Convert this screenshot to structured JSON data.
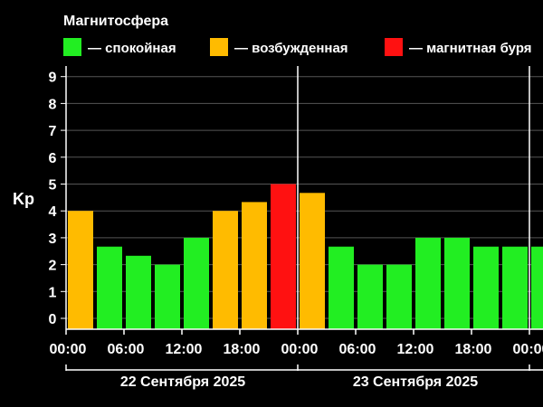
{
  "chart_data": {
    "type": "bar",
    "legend": {
      "title": "Магнитосфера",
      "placement": "top-left",
      "items": [
        {
          "label": "— спокойная",
          "color": "#22ee22"
        },
        {
          "label": "— возбужденная",
          "color": "#ffbb00"
        },
        {
          "label": "— магнитная буря",
          "color": "#ff1111"
        }
      ]
    },
    "ylabel": "Kp",
    "ylim": [
      0,
      9.5
    ],
    "yticks": [
      "0",
      "1",
      "2",
      "3",
      "4",
      "5",
      "6",
      "7",
      "8",
      "9"
    ],
    "xticks": [
      "00:00",
      "06:00",
      "12:00",
      "18:00",
      "00:00",
      "06:00",
      "12:00",
      "18:00",
      "00:00"
    ],
    "days": [
      "22 Сентября 2025",
      "23 Сентября 2025"
    ],
    "grid": true,
    "values": [
      4.0,
      2.67,
      2.33,
      2.0,
      3.0,
      4.0,
      4.33,
      5.0,
      4.67,
      2.67,
      2.0,
      2.0,
      3.0,
      3.0,
      2.67,
      2.67,
      2.67
    ],
    "levels": [
      "excited",
      "quiet",
      "quiet",
      "quiet",
      "quiet",
      "excited",
      "excited",
      "storm",
      "excited",
      "quiet",
      "quiet",
      "quiet",
      "quiet",
      "quiet",
      "quiet",
      "quiet",
      "quiet"
    ],
    "colors": {
      "quiet": "#22ee22",
      "excited": "#ffbb00",
      "storm": "#ff1111",
      "grid": "#555555",
      "axis": "#ffffff"
    }
  }
}
